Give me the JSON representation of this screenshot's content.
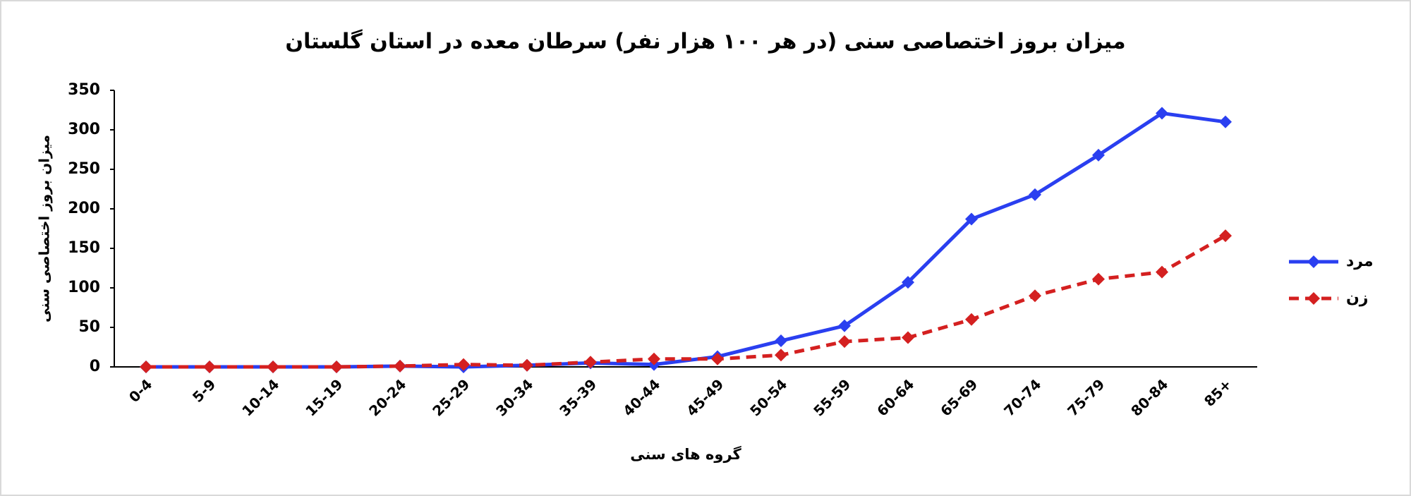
{
  "chart_data": {
    "type": "line",
    "title": "میزان بروز اختصاصی سنی (در هر ۱۰۰ هزار نفر) سرطان معده در استان گلستان",
    "x_label": "گروه های سنی",
    "y_label": "میزان بروز اختصاصی سنی",
    "categories": [
      "0-4",
      "5-9",
      "10-14",
      "15-19",
      "20-24",
      "25-29",
      "30-34",
      "35-39",
      "40-44",
      "45-49",
      "50-54",
      "55-59",
      "60-64",
      "65-69",
      "70-74",
      "75-79",
      "80-84",
      "85+"
    ],
    "series": [
      {
        "name": "مرد",
        "color": "#2a3ff0",
        "dash": false,
        "values": [
          0,
          0,
          0,
          0,
          1,
          0,
          2,
          5,
          3,
          13,
          33,
          52,
          107,
          187,
          218,
          268,
          321,
          310
        ]
      },
      {
        "name": "زن",
        "color": "#d42020",
        "dash": true,
        "values": [
          0,
          0,
          0,
          0,
          1,
          3,
          2,
          6,
          10,
          10,
          15,
          32,
          37,
          60,
          90,
          111,
          120,
          166
        ]
      }
    ],
    "ylim": [
      0,
      350
    ],
    "yticks": [
      0,
      50,
      100,
      150,
      200,
      250,
      300,
      350
    ],
    "grid": false,
    "legend": "right"
  }
}
